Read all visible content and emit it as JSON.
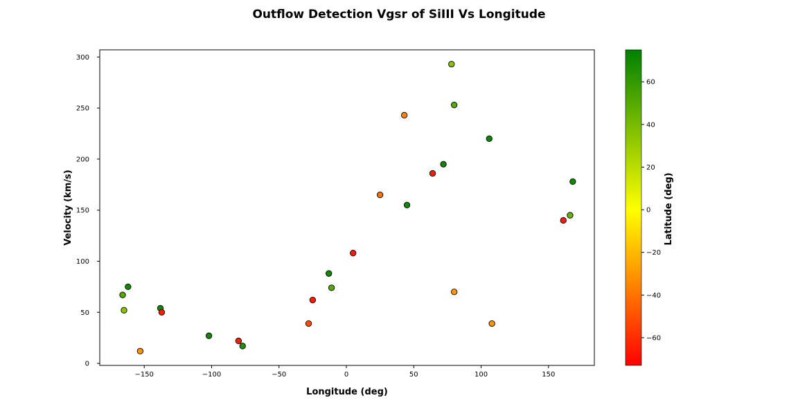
{
  "chart_data": {
    "type": "scatter",
    "title": "Outflow Detection Vgsr of SiIII Vs Longitude",
    "xlabel": "Longitude (deg)",
    "ylabel": "Velocity (km/s)",
    "xlim": [
      -183,
      184
    ],
    "ylim": [
      -2,
      307
    ],
    "xticks": [
      -150,
      -100,
      -50,
      0,
      50,
      100,
      150
    ],
    "xtick_labels": [
      "−150",
      "−100",
      "−50",
      "0",
      "50",
      "100",
      "150"
    ],
    "yticks": [
      0,
      50,
      100,
      150,
      200,
      250,
      300
    ],
    "ytick_labels": [
      "0",
      "50",
      "100",
      "150",
      "200",
      "250",
      "300"
    ],
    "grid": false,
    "legend": "none",
    "colorbar": {
      "label": "Latitude (deg)",
      "range": [
        -73,
        75
      ],
      "ticks": [
        -60,
        -40,
        -20,
        0,
        20,
        40,
        60
      ],
      "tick_labels": [
        "−60",
        "−40",
        "−20",
        "0",
        "20",
        "40",
        "60"
      ],
      "colors": [
        "#ff0000",
        "#ffff00",
        "#008000"
      ]
    },
    "points": [
      {
        "x": -166,
        "y": 67,
        "lat": 50
      },
      {
        "x": -165,
        "y": 52,
        "lat": 35
      },
      {
        "x": -162,
        "y": 75,
        "lat": 70
      },
      {
        "x": -153,
        "y": 12,
        "lat": -30
      },
      {
        "x": -138,
        "y": 54,
        "lat": 70
      },
      {
        "x": -137,
        "y": 50,
        "lat": -65
      },
      {
        "x": -102,
        "y": 27,
        "lat": 70
      },
      {
        "x": -80,
        "y": 22,
        "lat": -65
      },
      {
        "x": -77,
        "y": 17,
        "lat": 65
      },
      {
        "x": -28,
        "y": 39,
        "lat": -50
      },
      {
        "x": -25,
        "y": 62,
        "lat": -65
      },
      {
        "x": -13,
        "y": 88,
        "lat": 70
      },
      {
        "x": -11,
        "y": 74,
        "lat": 50
      },
      {
        "x": 5,
        "y": 108,
        "lat": -65
      },
      {
        "x": 25,
        "y": 165,
        "lat": -40
      },
      {
        "x": 43,
        "y": 243,
        "lat": -35
      },
      {
        "x": 45,
        "y": 155,
        "lat": 70
      },
      {
        "x": 64,
        "y": 186,
        "lat": -65
      },
      {
        "x": 72,
        "y": 195,
        "lat": 72
      },
      {
        "x": 78,
        "y": 293,
        "lat": 35
      },
      {
        "x": 80,
        "y": 253,
        "lat": 50
      },
      {
        "x": 80,
        "y": 70,
        "lat": -30
      },
      {
        "x": 106,
        "y": 220,
        "lat": 72
      },
      {
        "x": 108,
        "y": 39,
        "lat": -30
      },
      {
        "x": 161,
        "y": 140,
        "lat": -65
      },
      {
        "x": 166,
        "y": 145,
        "lat": 45
      },
      {
        "x": 168,
        "y": 178,
        "lat": 70
      }
    ]
  }
}
